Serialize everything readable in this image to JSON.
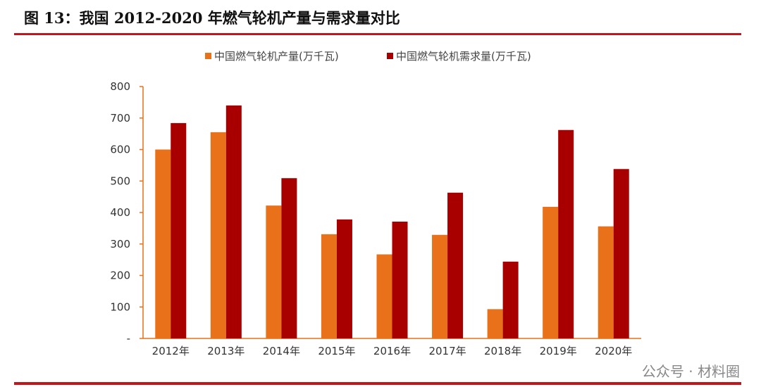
{
  "header": {
    "title": "图 13：我国 2012-2020 年燃气轮机产量与需求量对比"
  },
  "watermark": "公众号 · 材料圈",
  "chart_data": {
    "type": "bar",
    "title": "图 13：我国 2012-2020 年燃气轮机产量与需求量对比",
    "categories": [
      "2012年",
      "2013年",
      "2014年",
      "2015年",
      "2016年",
      "2017年",
      "2018年",
      "2019年",
      "2020年"
    ],
    "series": [
      {
        "name": "中国燃气轮机产量(万千瓦)",
        "color": "#e8711a",
        "values": [
          600,
          655,
          422,
          331,
          267,
          329,
          93,
          418,
          356
        ]
      },
      {
        "name": "中国燃气轮机需求量(万千瓦)",
        "color": "#a80000",
        "values": [
          684,
          740,
          509,
          378,
          371,
          463,
          244,
          662,
          538
        ]
      }
    ],
    "xlabel": "",
    "ylabel": "",
    "ylim": [
      0,
      800
    ],
    "yticks": [
      "-",
      "100",
      "200",
      "300",
      "400",
      "500",
      "600",
      "700",
      "800"
    ],
    "grid": false,
    "legend": "top-center"
  }
}
